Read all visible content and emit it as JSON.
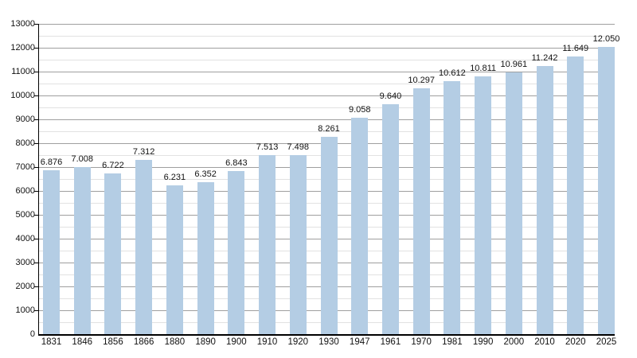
{
  "chart_data": {
    "type": "bar",
    "title": "",
    "xlabel": "",
    "ylabel": "",
    "categories": [
      "1831",
      "1846",
      "1856",
      "1866",
      "1880",
      "1890",
      "1900",
      "1910",
      "1920",
      "1930",
      "1947",
      "1961",
      "1970",
      "1981",
      "1990",
      "2000",
      "2010",
      "2020",
      "2025"
    ],
    "values": [
      6876,
      7008,
      6722,
      7312,
      6231,
      6352,
      6843,
      7513,
      7498,
      8261,
      9058,
      9640,
      10297,
      10612,
      10811,
      10961,
      11242,
      11649,
      12050
    ],
    "value_labels": [
      "6.876",
      "7.008",
      "6.722",
      "7.312",
      "6.231",
      "6.352",
      "6.843",
      "7.513",
      "7.498",
      "8.261",
      "9.058",
      "9.640",
      "10.297",
      "10.612",
      "10.811",
      "10.961",
      "11.242",
      "11.649",
      "12.050"
    ],
    "ylim": [
      0,
      13000
    ],
    "y_major_step": 1000,
    "y_minor_step": 500,
    "y_tick_labels": [
      "0",
      "1000",
      "2000",
      "3000",
      "4000",
      "5000",
      "6000",
      "7000",
      "8000",
      "9000",
      "10000",
      "11000",
      "12000",
      "13000"
    ],
    "grid": true,
    "legend": null,
    "colors": {
      "bar": "#b4cde4",
      "major_grid": "#9f9f9f",
      "minor_grid": "#e2e2e2",
      "axis": "#000000",
      "text": "#111111",
      "background": "#ffffff"
    }
  }
}
